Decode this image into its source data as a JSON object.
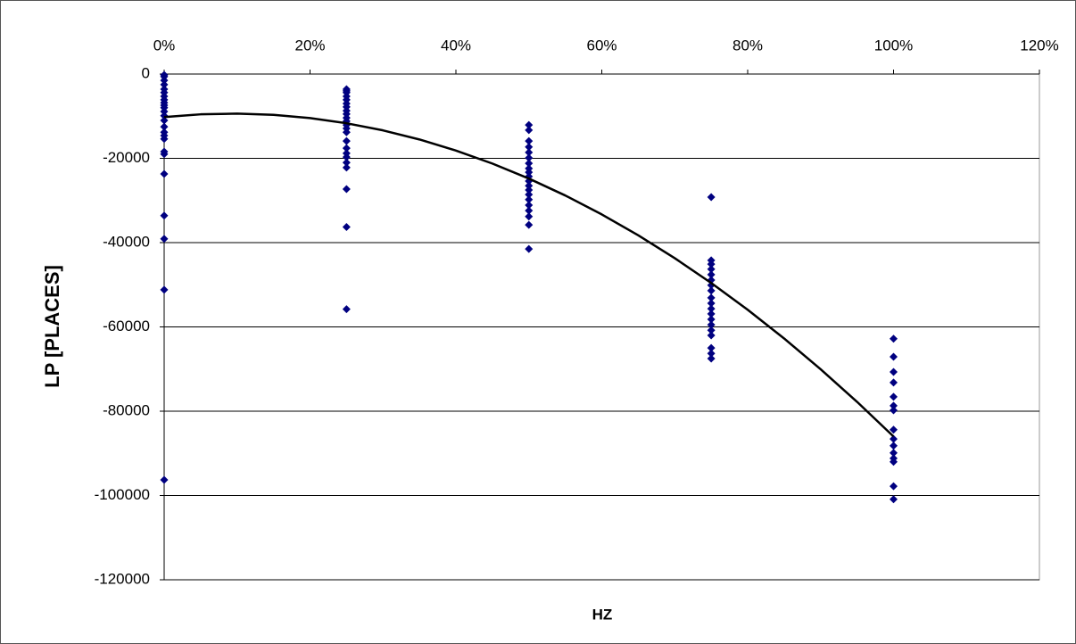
{
  "chart_data": {
    "type": "scatter",
    "xlabel": "HZ",
    "ylabel": "LP [PLACES]",
    "xlim": [
      0,
      120
    ],
    "xticks": [
      {
        "value": 0,
        "label": "0%"
      },
      {
        "value": 20,
        "label": "20%"
      },
      {
        "value": 40,
        "label": "40%"
      },
      {
        "value": 60,
        "label": "60%"
      },
      {
        "value": 80,
        "label": "80%"
      },
      {
        "value": 100,
        "label": "100%"
      },
      {
        "value": 120,
        "label": "120%"
      }
    ],
    "ylim": [
      -120000,
      0
    ],
    "yticks": [
      0,
      -20000,
      -40000,
      -60000,
      -80000,
      -100000,
      -120000
    ],
    "grid": true,
    "series": [
      {
        "type": "scatter",
        "color": "#000080",
        "x": [
          0,
          0,
          0,
          0,
          0,
          0,
          0,
          0,
          0,
          0,
          0,
          0,
          0,
          0,
          0,
          0,
          0,
          0,
          0,
          0,
          0,
          0,
          0,
          0,
          0
        ],
        "values": [
          -200,
          -600,
          -1500,
          -2500,
          -3600,
          -4400,
          -5300,
          -6100,
          -6800,
          -7400,
          -8000,
          -8900,
          -9900,
          -11000,
          -12500,
          -13800,
          -14600,
          -15400,
          -18400,
          -19000,
          -23700,
          -33600,
          -39100,
          -51200,
          -96300
        ]
      },
      {
        "type": "scatter",
        "color": "#000080",
        "x": [
          25,
          25,
          25,
          25,
          25,
          25,
          25,
          25,
          25,
          25,
          25,
          25,
          25,
          25,
          25,
          25,
          25,
          25,
          25,
          25,
          25,
          25,
          25
        ],
        "values": [
          -3600,
          -4000,
          -4400,
          -5300,
          -6100,
          -7000,
          -7800,
          -8700,
          -9500,
          -10400,
          -11200,
          -12100,
          -12900,
          -13800,
          -15900,
          -17600,
          -18800,
          -19700,
          -21000,
          -22200,
          -27300,
          -36300,
          -55800
        ]
      },
      {
        "type": "scatter",
        "color": "#000080",
        "x": [
          50,
          50,
          50,
          50,
          50,
          50,
          50,
          50,
          50,
          50,
          50,
          50,
          50,
          50,
          50,
          50,
          50,
          50,
          50,
          50
        ],
        "values": [
          -12100,
          -13300,
          -15900,
          -17300,
          -18600,
          -19900,
          -21200,
          -22400,
          -23300,
          -24300,
          -25400,
          -26500,
          -27500,
          -28600,
          -29800,
          -31100,
          -32400,
          -33800,
          -35800,
          -41500
        ]
      },
      {
        "type": "scatter",
        "color": "#000080",
        "x": [
          75,
          75,
          75,
          75,
          75,
          75,
          75,
          75,
          75,
          75,
          75,
          75,
          75,
          75,
          75,
          75,
          75,
          75,
          75
        ],
        "values": [
          -29200,
          -44200,
          -45100,
          -46300,
          -47600,
          -48900,
          -50100,
          -51400,
          -53100,
          -54400,
          -55700,
          -56900,
          -58200,
          -59500,
          -60800,
          -62000,
          -65000,
          -66300,
          -67500
        ]
      },
      {
        "type": "scatter",
        "color": "#000080",
        "x": [
          100,
          100,
          100,
          100,
          100,
          100,
          100,
          100,
          100,
          100,
          100,
          100,
          100,
          100,
          100
        ],
        "values": [
          -62800,
          -67100,
          -70700,
          -73200,
          -76600,
          -78700,
          -79800,
          -84400,
          -86600,
          -88200,
          -89900,
          -91200,
          -92000,
          -97800,
          -100900
        ]
      },
      {
        "type": "line",
        "color": "#000000",
        "x": [
          0,
          5,
          10,
          15,
          20,
          25,
          30,
          35,
          40,
          45,
          50,
          55,
          60,
          65,
          70,
          75,
          80,
          85,
          90,
          95,
          100
        ],
        "values": [
          -10200,
          -9563,
          -9392,
          -9687,
          -10448,
          -11675,
          -13368,
          -15527,
          -18152,
          -21243,
          -24800,
          -28823,
          -33312,
          -38267,
          -43688,
          -49575,
          -55928,
          -62747,
          -70032,
          -77783,
          -86000
        ]
      }
    ]
  }
}
